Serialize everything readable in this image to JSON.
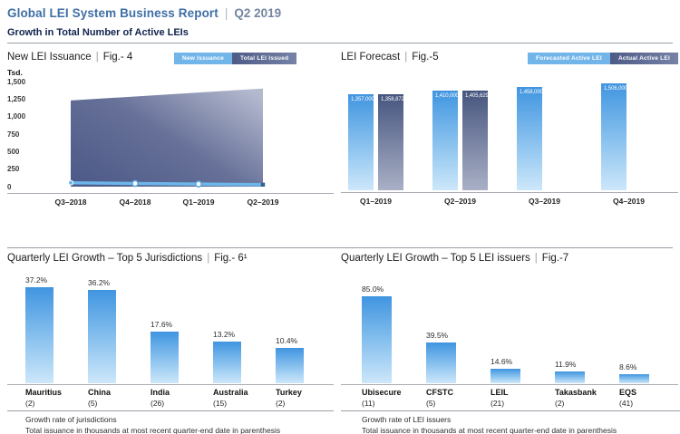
{
  "header": {
    "title": "Global LEI System Business Report",
    "period": "Q2 2019",
    "subtitle": "Growth in Total Number of Active LEIs"
  },
  "separators": {
    "pipe": "|"
  },
  "colors": {
    "accent_blue": "#3f6fa5",
    "period_gray_blue": "#7486a0",
    "subtitle_navy": "#10224e",
    "bar_light_top": "#4095e0",
    "bar_light_bottom": "#cde7fa",
    "bar_dark_top": "#46557e",
    "bar_dark_bottom": "#a9b0c6",
    "area_dark": "#4e5a88",
    "area_light": "#b4b9ce",
    "line_blue": "#6cb6ea",
    "axis_gray": "#a9adb3"
  },
  "chart_data": [
    {
      "id": "new-lei-issuance",
      "type": "area",
      "title": "New LEI Issuance",
      "fig_label": "Fig.- 4",
      "ylabel": "Tsd.",
      "xlabel": "",
      "ylim": [
        0,
        1500
      ],
      "y_ticks": [
        "1,500",
        "1,250",
        "1,000",
        "750",
        "500",
        "250",
        "0"
      ],
      "categories": [
        "Q3–2018",
        "Q4–2018",
        "Q1–2019",
        "Q2–2019"
      ],
      "series": [
        {
          "name": "New Issuance",
          "values": [
            55,
            45,
            38,
            28
          ]
        },
        {
          "name": "Total LEI Issued",
          "values": [
            1230,
            1287,
            1344,
            1400
          ]
        }
      ],
      "legend_position": "top-right",
      "grid": false
    },
    {
      "id": "lei-forecast",
      "type": "bar",
      "title": "LEI Forecast",
      "fig_label": "Fig.-5",
      "categories": [
        "Q1–2019",
        "Q2–2019",
        "Q3–2019",
        "Q4–2019"
      ],
      "series": [
        {
          "name": "Forecasted Active LEI",
          "values": [
            1357000,
            1410000,
            1458000,
            1506000
          ],
          "labels": [
            "1,357,000",
            "1,410,000",
            "1,458,000",
            "1,506,000"
          ]
        },
        {
          "name": "Actual Active LEI",
          "values": [
            1358872,
            1405629,
            null,
            null
          ],
          "labels": [
            "1,358,872",
            "1,405,629",
            null,
            null
          ]
        }
      ],
      "legend_position": "top-right",
      "grid": false
    },
    {
      "id": "top-5-jurisdictions",
      "type": "bar",
      "title": "Quarterly LEI Growth – Top 5 Jurisdictions",
      "fig_label": "Fig.- 6¹",
      "categories": [
        "Mauritius",
        "China",
        "India",
        "Australia",
        "Turkey"
      ],
      "values": [
        37.2,
        36.2,
        17.6,
        13.2,
        10.4
      ],
      "value_labels": [
        "37.2%",
        "36.2%",
        "17.6%",
        "13.2%",
        "10.4%"
      ],
      "counts": [
        "(2)",
        "(5)",
        "(26)",
        "(15)",
        "(2)"
      ],
      "captions": [
        "Growth rate of jurisdictions",
        "Total issuance in thousands at most recent quarter-end date in parenthesis"
      ],
      "grid": false
    },
    {
      "id": "top-5-lei-issuers",
      "type": "bar",
      "title": "Quarterly LEI Growth – Top 5 LEI issuers",
      "fig_label": "Fig.-7",
      "categories": [
        "Ubisecure",
        "CFSTC",
        "LEIL",
        "Takasbank",
        "EQS"
      ],
      "values": [
        85.0,
        39.5,
        14.6,
        11.9,
        8.6
      ],
      "value_labels": [
        "85.0%",
        "39.5%",
        "14.6%",
        "11.9%",
        "8.6%"
      ],
      "counts": [
        "(11)",
        "(5)",
        "(21)",
        "(2)",
        "(41)"
      ],
      "captions": [
        "Growth rate of LEI issuers",
        "Total issuance in thousands at most recent quarter-end date in parenthesis"
      ],
      "grid": false
    }
  ]
}
